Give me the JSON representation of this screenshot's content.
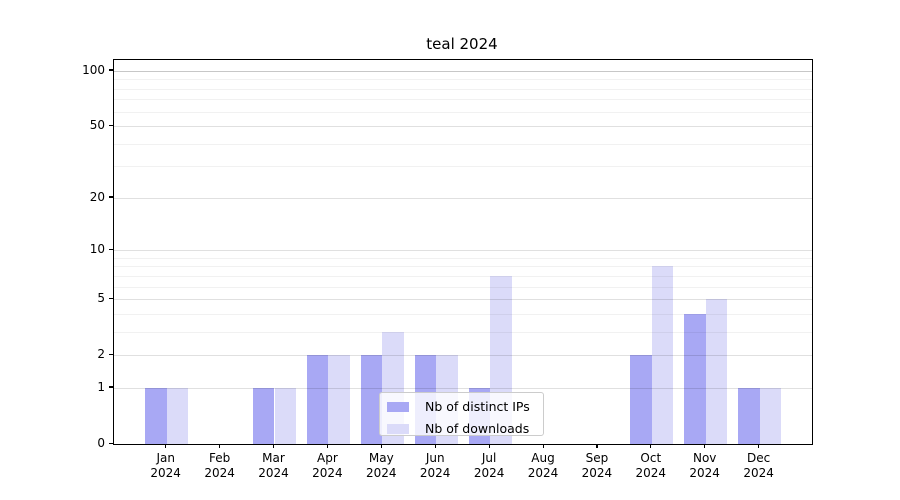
{
  "title": "teal 2024",
  "chart_data": {
    "type": "bar",
    "title": "teal 2024",
    "categories": [
      "Jan 2024",
      "Feb 2024",
      "Mar 2024",
      "Apr 2024",
      "May 2024",
      "Jun 2024",
      "Jul 2024",
      "Aug 2024",
      "Sep 2024",
      "Oct 2024",
      "Nov 2024",
      "Dec 2024"
    ],
    "x_tick_months": [
      "Jan",
      "Feb",
      "Mar",
      "Apr",
      "May",
      "Jun",
      "Jul",
      "Aug",
      "Sep",
      "Oct",
      "Nov",
      "Dec"
    ],
    "x_tick_year": "2024",
    "series": [
      {
        "name": "Nb of distinct IPs",
        "color": "#a8a8f4",
        "values": [
          1,
          0,
          1,
          2,
          2,
          2,
          1,
          0,
          0,
          2,
          4,
          1
        ]
      },
      {
        "name": "Nb of downloads",
        "color": "#dbdbf9",
        "values": [
          1,
          0,
          1,
          2,
          3,
          2,
          7,
          0,
          0,
          8,
          5,
          1
        ]
      }
    ],
    "y_scale": "log1p",
    "y_axis": {
      "major_ticks": [
        0,
        1,
        2,
        5,
        10,
        20,
        50,
        100
      ],
      "minor_ticks": [
        3,
        4,
        6,
        7,
        8,
        9,
        30,
        40,
        60,
        70,
        80,
        90
      ],
      "ylim": [
        0,
        115
      ]
    },
    "legend": {
      "position": "lower center",
      "items": [
        "Nb of distinct IPs",
        "Nb of downloads"
      ]
    },
    "grid": true,
    "colors": {
      "bar_distinct_ips": "#a8a8f4",
      "bar_downloads": "#dbdbf9",
      "grid_major": "#e0e0e0",
      "grid_minor": "#efefef",
      "axis": "#000000"
    }
  }
}
